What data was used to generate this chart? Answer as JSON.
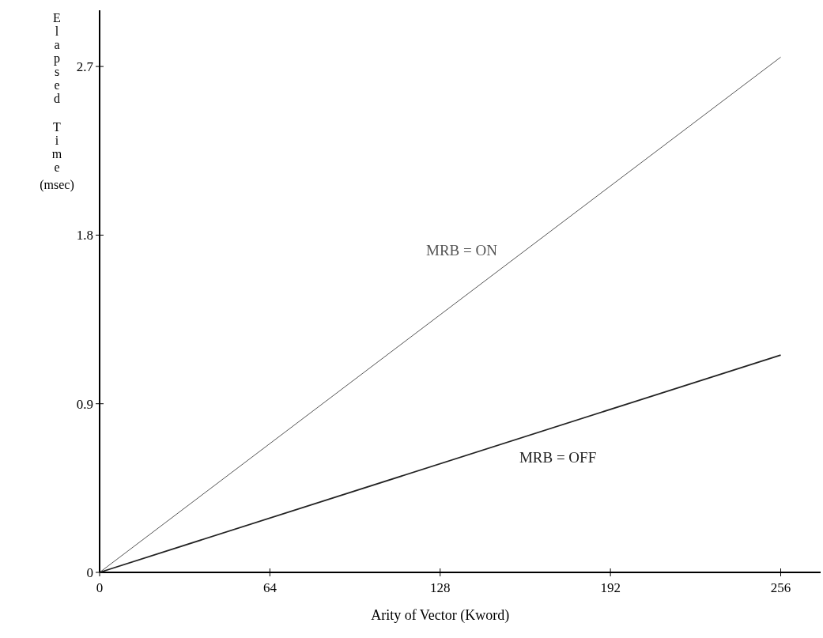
{
  "chart_data": {
    "type": "line",
    "xlabel": "Arity of Vector (Kword)",
    "ylabel": "Elapsed Time (msec)",
    "x": [
      0,
      256
    ],
    "series": [
      {
        "name": "MRB = ON",
        "color": "#555555",
        "values": [
          0,
          2.75
        ]
      },
      {
        "name": "MRB = OFF",
        "color": "#222222",
        "values": [
          0,
          1.16
        ]
      }
    ],
    "xlim": [
      0,
      271
    ],
    "xticks": [
      0,
      64,
      128,
      192,
      256
    ],
    "ylim": [
      0,
      3
    ],
    "yticks": [
      0,
      0.9,
      1.8,
      2.7
    ],
    "grid": false,
    "legend": false,
    "marker": "none",
    "line_style": "solid"
  }
}
